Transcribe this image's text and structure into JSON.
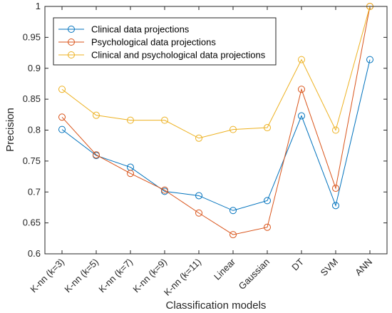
{
  "chart_data": {
    "type": "line",
    "categories": [
      "K-nn (k=3)",
      "K-nn (k=5)",
      "K-nn (k=7)",
      "K-nn (k=9)",
      "K-nn (k=11)",
      "Linear",
      "Gaussian",
      "DT",
      "SVM",
      "ANN"
    ],
    "series": [
      {
        "name": "Clinical data projections",
        "color": "#0072BD",
        "values": [
          0.801,
          0.759,
          0.74,
          0.701,
          0.694,
          0.67,
          0.686,
          0.823,
          0.678,
          0.914
        ]
      },
      {
        "name": "Psychological data projections",
        "color": "#D95319",
        "values": [
          0.821,
          0.76,
          0.73,
          0.703,
          0.666,
          0.631,
          0.643,
          0.866,
          0.706,
          1.0
        ]
      },
      {
        "name": "Clinical and psychological data projections",
        "color": "#EDB120",
        "values": [
          0.866,
          0.824,
          0.816,
          0.816,
          0.787,
          0.801,
          0.804,
          0.914,
          0.8,
          1.0
        ]
      }
    ],
    "xlabel": "Classification models",
    "ylabel": "Precision",
    "ylim": [
      0.6,
      1.0
    ],
    "yticks": [
      "0.6",
      "0.65",
      "0.7",
      "0.75",
      "0.8",
      "0.85",
      "0.9",
      "0.95",
      "1"
    ],
    "ytick_values": [
      0.6,
      0.65,
      0.7,
      0.75,
      0.8,
      0.85,
      0.9,
      0.95,
      1.0
    ],
    "grid": false,
    "legend": "top-left",
    "marker": "circle-open"
  }
}
